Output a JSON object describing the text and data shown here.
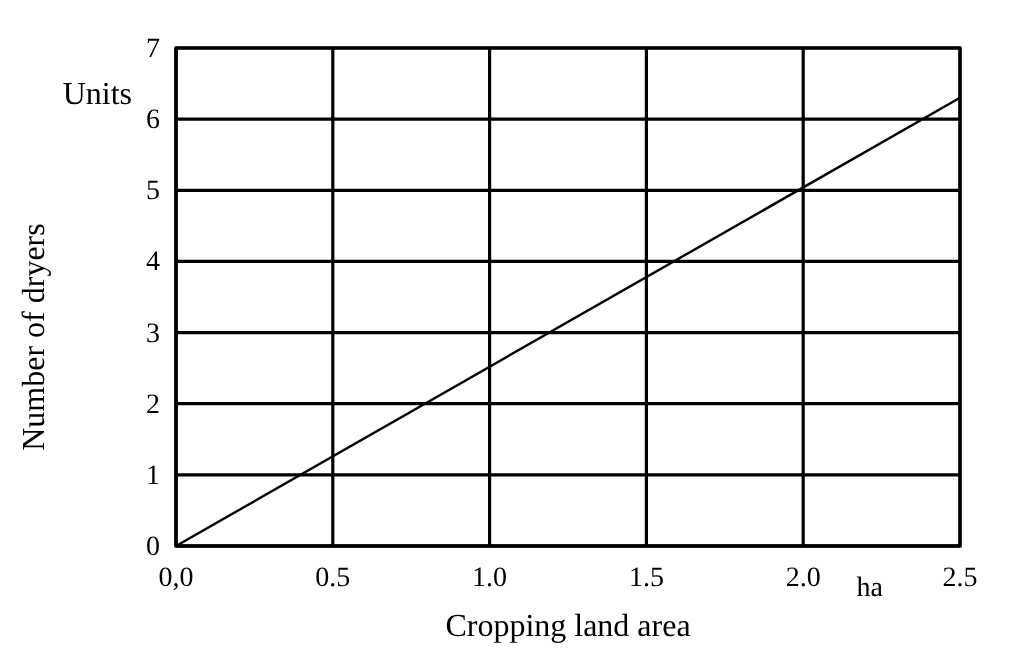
{
  "chart_data": {
    "type": "line",
    "xlabel": "Cropping land area",
    "ylabel": "Number of dryers",
    "annotations": [
      "Units",
      "ha"
    ],
    "x": [
      0,
      2.5
    ],
    "series": [
      {
        "color": "#000000",
        "values": [
          0,
          6.3
        ]
      }
    ],
    "xlim": [
      0,
      2.5
    ],
    "xticks": [
      {
        "value": 0,
        "label": "0,0"
      },
      {
        "value": 0.5,
        "label": "0.5"
      },
      {
        "value": 1,
        "label": "1.0"
      },
      {
        "value": 1.5,
        "label": "1.5"
      },
      {
        "value": 2,
        "label": "2.0"
      },
      {
        "value": 2.5,
        "label": "2.5"
      }
    ],
    "ylim": [
      0,
      7
    ],
    "yticks": [
      0,
      1,
      2,
      3,
      4,
      5,
      6,
      7
    ],
    "grid": true,
    "marker": "none",
    "line_style": "solid"
  }
}
